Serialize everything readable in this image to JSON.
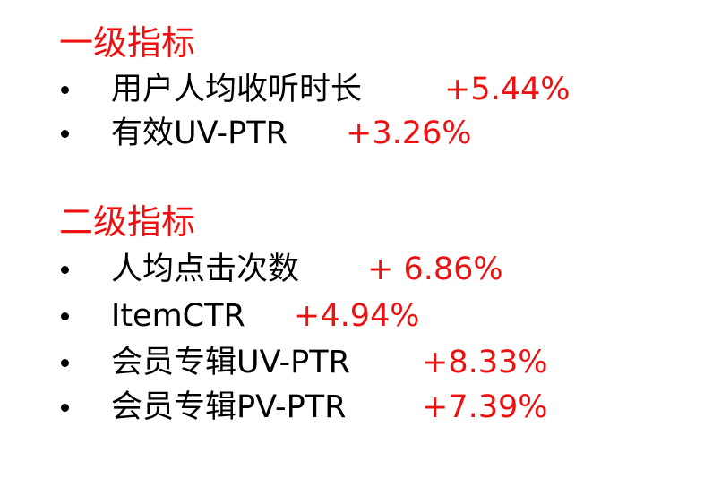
{
  "sections": [
    {
      "title": "一级指标",
      "items": [
        {
          "label": "用户人均收听时长",
          "value": "+5.44%"
        },
        {
          "label": "有效UV-PTR",
          "value": "+3.26%"
        }
      ]
    },
    {
      "title": "二级指标",
      "items": [
        {
          "label": "人均点击次数",
          "value": "+ 6.86%"
        },
        {
          "label": "ItemCTR",
          "value": "+4.94%"
        },
        {
          "label": "会员专辑UV-PTR",
          "value": "+8.33%"
        },
        {
          "label": "会员专辑PV-PTR",
          "value": "+7.39%"
        }
      ]
    }
  ],
  "colors": {
    "accent": "#ee1111",
    "text": "#000000",
    "background": "#ffffff"
  }
}
